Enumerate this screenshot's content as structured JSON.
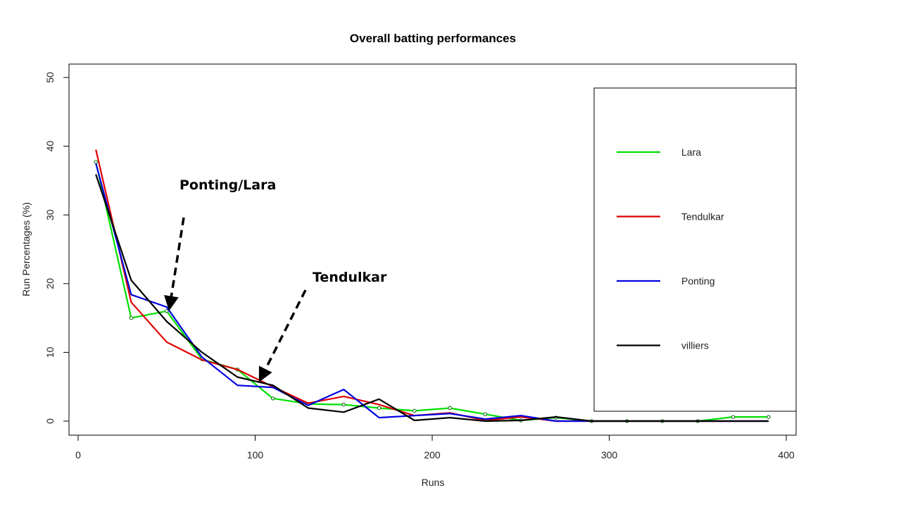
{
  "chart_data": {
    "type": "line",
    "title": "Overall batting performances",
    "xlabel": "Runs",
    "ylabel": "Run Percentages (%)",
    "xlim": [
      0,
      400
    ],
    "ylim": [
      0,
      50
    ],
    "xticks": [
      0,
      100,
      200,
      300,
      400
    ],
    "yticks": [
      0,
      10,
      20,
      30,
      40,
      50
    ],
    "grid": false,
    "legend_position": "right",
    "x": [
      10,
      30,
      50,
      70,
      90,
      110,
      130,
      150,
      170,
      190,
      210,
      230,
      250,
      270,
      290,
      310,
      330,
      350,
      370,
      390
    ],
    "series": [
      {
        "name": "Lara",
        "color": "#00e000",
        "markers": true,
        "values": [
          37.7,
          15.0,
          16.0,
          9.0,
          7.5,
          3.3,
          2.5,
          2.4,
          1.9,
          1.5,
          1.9,
          1.0,
          0.1,
          0.5,
          0.0,
          0.0,
          0.0,
          0.0,
          0.6,
          0.6
        ]
      },
      {
        "name": "Tendulkar",
        "color": "#e00000",
        "markers": false,
        "values": [
          39.5,
          17.3,
          11.5,
          8.9,
          7.5,
          5.0,
          2.6,
          3.6,
          2.4,
          0.8,
          1.2,
          0.1,
          0.6,
          0.0,
          0.0,
          0.0,
          0.0,
          0.0,
          0.0,
          0.0
        ]
      },
      {
        "name": "Ponting",
        "color": "#0000e0",
        "markers": false,
        "values": [
          37.5,
          18.4,
          16.6,
          9.3,
          5.2,
          4.9,
          2.3,
          4.6,
          0.5,
          0.8,
          1.1,
          0.3,
          0.8,
          0.0,
          0.0,
          0.0,
          0.0,
          0.0,
          0.0,
          0.0
        ]
      },
      {
        "name": "villiers",
        "color": "#000000",
        "markers": false,
        "values": [
          35.9,
          20.5,
          14.5,
          10.0,
          6.4,
          5.2,
          1.9,
          1.3,
          3.2,
          0.1,
          0.5,
          0.0,
          0.1,
          0.6,
          0.0,
          0.0,
          0.0,
          0.0,
          0.0,
          0.0
        ]
      }
    ],
    "annotations": [
      {
        "text": "Ponting/Lara",
        "points_to": [
          52,
          16.5
        ]
      },
      {
        "text": "Tendulkar",
        "points_to": [
          104,
          6.0
        ]
      }
    ]
  }
}
